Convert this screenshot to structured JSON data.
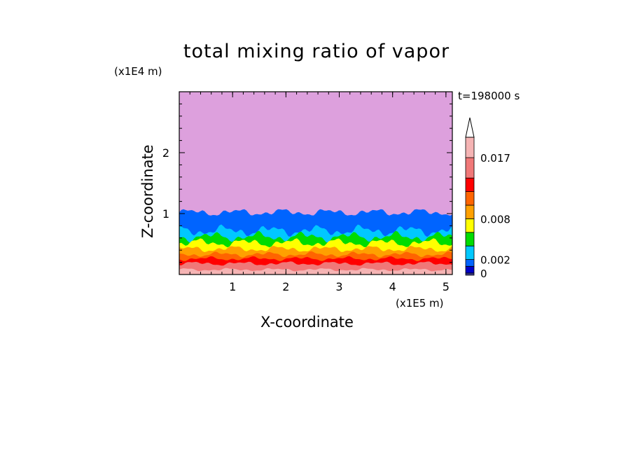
{
  "chart_data": {
    "type": "heatmap",
    "title": "total mixing ratio of vapor",
    "xlabel": "X-coordinate",
    "ylabel": "Z-coordinate",
    "x_unit_label": "(x1E5 m)",
    "z_unit_label": "(x1E4 m)",
    "time_label": "t=198000 s",
    "xlim": [
      0,
      5.12
    ],
    "ylim": [
      0,
      3
    ],
    "x_ticks": [
      "1",
      "2",
      "3",
      "4",
      "5"
    ],
    "y_ticks": [
      "1",
      "2"
    ],
    "colorbar": {
      "levels": [
        0,
        0.001,
        0.002,
        0.004,
        0.006,
        0.008,
        0.01,
        0.012,
        0.014,
        0.017,
        0.02
      ],
      "labels": [
        "0",
        "0.002",
        "0.008",
        "0.017"
      ],
      "colors": [
        "#3c3c8c",
        "#0000c8",
        "#0064ff",
        "#00c8ff",
        "#00dc00",
        "#ffff00",
        "#ffa000",
        "#ff6400",
        "#ff0000",
        "#f07878",
        "#f5b4b4"
      ],
      "extend_top": true
    },
    "background_color": "#dda0dd",
    "layers": [
      {
        "level": 0.001,
        "base_z": 1.02,
        "amp": 0.07
      },
      {
        "level": 0.002,
        "base_z": 0.72,
        "amp": 0.1
      },
      {
        "level": 0.004,
        "base_z": 0.62,
        "amp": 0.09
      },
      {
        "level": 0.006,
        "base_z": 0.52,
        "amp": 0.08
      },
      {
        "level": 0.008,
        "base_z": 0.42,
        "amp": 0.06
      },
      {
        "level": 0.01,
        "base_z": 0.33,
        "amp": 0.05
      },
      {
        "level": 0.012,
        "base_z": 0.26,
        "amp": 0.04
      },
      {
        "level": 0.014,
        "base_z": 0.18,
        "amp": 0.04
      },
      {
        "level": 0.017,
        "base_z": 0.08,
        "amp": 0.03
      }
    ]
  }
}
